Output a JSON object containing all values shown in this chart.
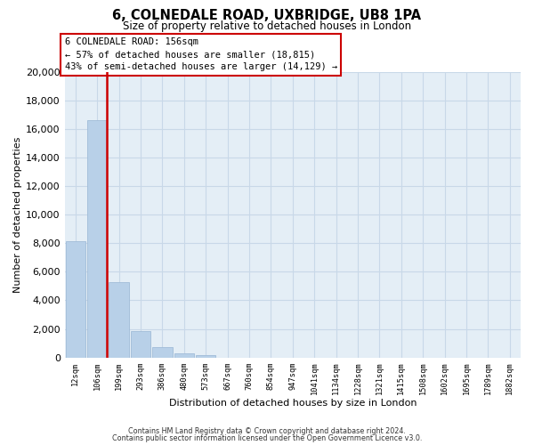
{
  "title": "6, COLNEDALE ROAD, UXBRIDGE, UB8 1PA",
  "subtitle": "Size of property relative to detached houses in London",
  "xlabel": "Distribution of detached houses by size in London",
  "ylabel": "Number of detached\nproperties",
  "bar_labels": [
    "12sqm",
    "106sqm",
    "199sqm",
    "293sqm",
    "386sqm",
    "480sqm",
    "573sqm",
    "667sqm",
    "760sqm",
    "854sqm",
    "947sqm",
    "1041sqm",
    "1134sqm",
    "1228sqm",
    "1321sqm",
    "1415sqm",
    "1508sqm",
    "1602sqm",
    "1695sqm",
    "1789sqm",
    "1882sqm"
  ],
  "bar_heights": [
    8150,
    16600,
    5300,
    1850,
    750,
    300,
    200,
    0,
    0,
    0,
    0,
    0,
    0,
    0,
    0,
    0,
    0,
    0,
    0,
    0,
    0
  ],
  "bar_color": "#b8d0e8",
  "bar_edge_color": "#a0bcd8",
  "property_line_color": "#cc0000",
  "ylim": [
    0,
    20000
  ],
  "yticks": [
    0,
    2000,
    4000,
    6000,
    8000,
    10000,
    12000,
    14000,
    16000,
    18000,
    20000
  ],
  "annotation_title": "6 COLNEDALE ROAD: 156sqm",
  "annotation_line1": "← 57% of detached houses are smaller (18,815)",
  "annotation_line2": "43% of semi-detached houses are larger (14,129) →",
  "annotation_box_color": "#ffffff",
  "annotation_box_edge": "#cc0000",
  "footer1": "Contains HM Land Registry data © Crown copyright and database right 2024.",
  "footer2": "Contains public sector information licensed under the Open Government Licence v3.0.",
  "grid_color": "#c8d8e8",
  "bg_color": "#e4eef6"
}
